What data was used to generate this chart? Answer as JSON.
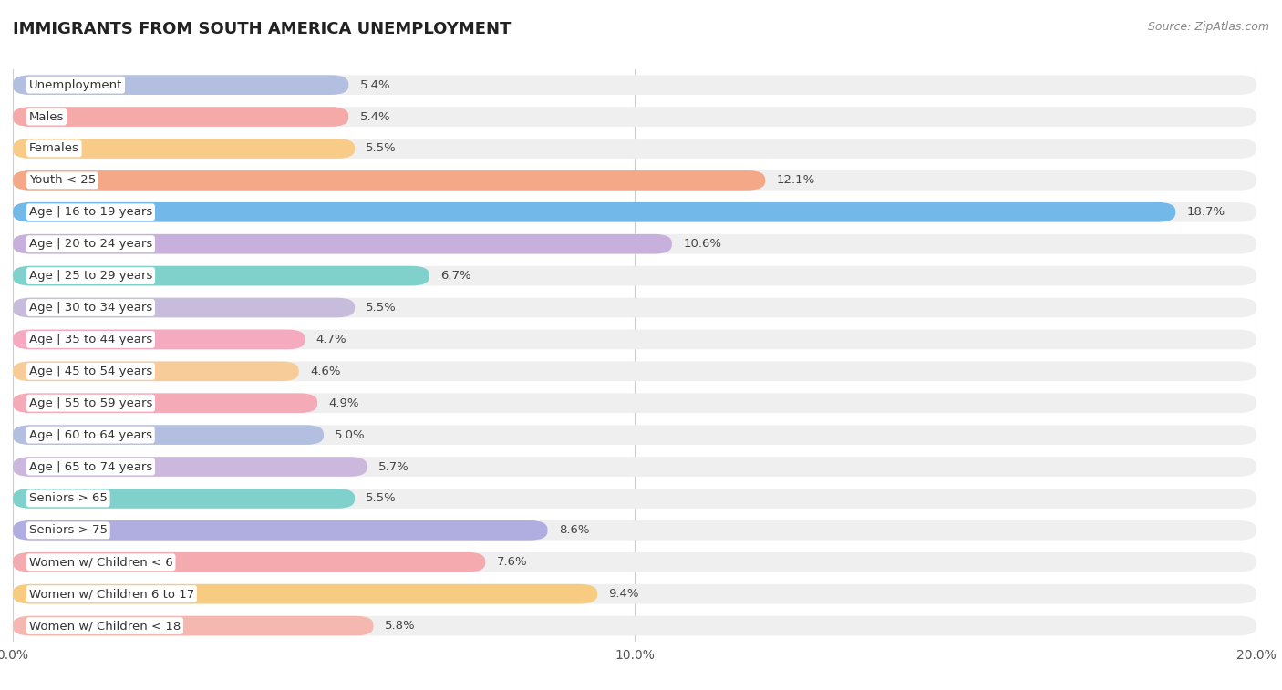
{
  "title": "IMMIGRANTS FROM SOUTH AMERICA UNEMPLOYMENT",
  "source": "Source: ZipAtlas.com",
  "categories": [
    "Unemployment",
    "Males",
    "Females",
    "Youth < 25",
    "Age | 16 to 19 years",
    "Age | 20 to 24 years",
    "Age | 25 to 29 years",
    "Age | 30 to 34 years",
    "Age | 35 to 44 years",
    "Age | 45 to 54 years",
    "Age | 55 to 59 years",
    "Age | 60 to 64 years",
    "Age | 65 to 74 years",
    "Seniors > 65",
    "Seniors > 75",
    "Women w/ Children < 6",
    "Women w/ Children 6 to 17",
    "Women w/ Children < 18"
  ],
  "values": [
    5.4,
    5.4,
    5.5,
    12.1,
    18.7,
    10.6,
    6.7,
    5.5,
    4.7,
    4.6,
    4.9,
    5.0,
    5.7,
    5.5,
    8.6,
    7.6,
    9.4,
    5.8
  ],
  "colors": [
    "#b3bfe0",
    "#f5aaaa",
    "#f8cc88",
    "#f5a888",
    "#72b8e8",
    "#c8b0dc",
    "#80d0cc",
    "#c8bcdc",
    "#f5aac0",
    "#f8cc98",
    "#f5aab8",
    "#b3bfe0",
    "#ccb8dc",
    "#80d0cc",
    "#b0aee0",
    "#f5aab0",
    "#f8cc80",
    "#f5b8b0"
  ],
  "xlim": [
    0,
    20
  ],
  "xticks": [
    0.0,
    10.0,
    20.0
  ],
  "xticklabels": [
    "0.0%",
    "10.0%",
    "20.0%"
  ],
  "plot_bg_color": "#ffffff",
  "fig_bg_color": "#ffffff",
  "row_bg_color": "#efefef",
  "title_fontsize": 13,
  "label_fontsize": 9.5,
  "value_fontsize": 9.5,
  "source_fontsize": 9
}
